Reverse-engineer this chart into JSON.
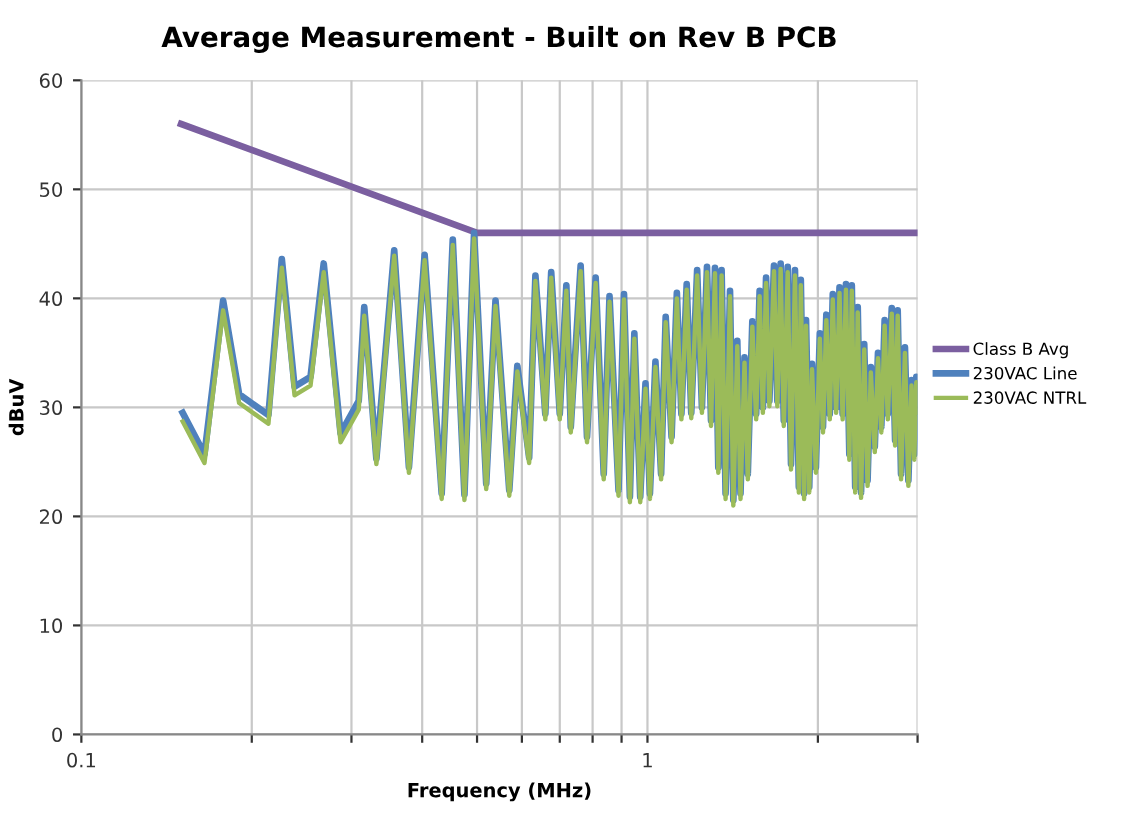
{
  "chart_data": {
    "type": "line",
    "title": "Average Measurement - Built on Rev B PCB",
    "xlabel": "Frequency (MHz)",
    "ylabel": "dBuV",
    "log": "x",
    "xlim": [
      0.1,
      3
    ],
    "xticks": [
      0.1,
      {
        "value": 0.2,
        "label": null
      },
      {
        "value": 0.3,
        "label": null
      },
      {
        "value": 0.4,
        "label": null
      },
      {
        "value": 0.5,
        "label": null
      },
      {
        "value": 0.6,
        "label": null
      },
      {
        "value": 0.7,
        "label": null
      },
      {
        "value": 0.8,
        "label": null
      },
      {
        "value": 0.9,
        "label": null
      },
      1,
      {
        "value": 2,
        "label": null
      },
      {
        "value": 3,
        "label": null
      }
    ],
    "ylim": [
      0,
      60
    ],
    "yticks": [
      0,
      10,
      20,
      30,
      40,
      50,
      60
    ],
    "grid": true,
    "legend": "right",
    "marker": "none",
    "line_style": "solid",
    "x": [
      0.151,
      0.165,
      0.178,
      0.19,
      0.214,
      0.226,
      0.238,
      0.254,
      0.268,
      0.287,
      0.309,
      0.316,
      0.332,
      0.357,
      0.379,
      0.404,
      0.433,
      0.453,
      0.475,
      0.494,
      0.519,
      0.539,
      0.57,
      0.589,
      0.618,
      0.634,
      0.66,
      0.676,
      0.7,
      0.719,
      0.732,
      0.762,
      0.782,
      0.81,
      0.837,
      0.857,
      0.889,
      0.909,
      0.931,
      0.948,
      0.971,
      0.992,
      1.01,
      1.033,
      1.057,
      1.077,
      1.103,
      1.127,
      1.148,
      1.173,
      1.195,
      1.224,
      1.248,
      1.274,
      1.295,
      1.316,
      1.334,
      1.352,
      1.374,
      1.399,
      1.418,
      1.441,
      1.46,
      1.484,
      1.504,
      1.532,
      1.556,
      1.578,
      1.599,
      1.62,
      1.642,
      1.673,
      1.696,
      1.719,
      1.741,
      1.769,
      1.793,
      1.822,
      1.851,
      1.866,
      1.891,
      1.906,
      1.931,
      1.953,
      1.984,
      2.016,
      2.042,
      2.07,
      2.099,
      2.125,
      2.154,
      2.184,
      2.212,
      2.242,
      2.273,
      2.296,
      2.328,
      2.352,
      2.384,
      2.415,
      2.448,
      2.481,
      2.521,
      2.554,
      2.589,
      2.624,
      2.658,
      2.701,
      2.738,
      2.767,
      2.805,
      2.85,
      2.89,
      2.927,
      2.96,
      2.985,
      3.0
    ],
    "series": [
      {
        "name": "Class B Avg",
        "color": "#7b5fa0",
        "x": [
          0.15,
          0.5,
          3
        ],
        "values": [
          56,
          46,
          46
        ]
      },
      {
        "name": "230VAC Line",
        "color": "#4f81bd",
        "values": [
          29.5,
          25.7,
          39.8,
          31.2,
          29.3,
          43.6,
          31.9,
          32.8,
          43.2,
          27.6,
          30.6,
          39.2,
          25.3,
          44.4,
          24.5,
          44.0,
          22.1,
          45.4,
          22.0,
          46.0,
          23.0,
          39.8,
          22.4,
          33.8,
          25.4,
          42.1,
          29.4,
          42.4,
          29.4,
          41.2,
          28.2,
          43.0,
          27.3,
          41.9,
          23.9,
          40.2,
          22.4,
          40.4,
          21.8,
          36.8,
          21.8,
          32.2,
          22.1,
          34.2,
          23.9,
          38.3,
          27.3,
          40.5,
          29.4,
          41.3,
          29.5,
          42.6,
          30.0,
          42.9,
          28.8,
          42.8,
          24.5,
          42.6,
          22.1,
          40.7,
          21.5,
          36.1,
          22.1,
          34.6,
          23.9,
          37.9,
          29.4,
          40.7,
          30.0,
          41.9,
          30.6,
          43.0,
          30.6,
          43.2,
          28.8,
          42.9,
          24.8,
          42.6,
          22.7,
          41.7,
          22.1,
          38.0,
          22.7,
          34.0,
          24.5,
          36.8,
          28.2,
          38.5,
          29.4,
          40.4,
          30.0,
          41.0,
          29.4,
          41.3,
          25.7,
          41.2,
          22.7,
          39.2,
          22.2,
          35.8,
          23.3,
          33.7,
          26.4,
          35.0,
          28.2,
          38.0,
          29.4,
          39.1,
          27.0,
          38.9,
          23.9,
          35.5,
          23.3,
          32.5,
          25.7,
          32.8,
          30.0
        ]
      },
      {
        "name": "230VAC NTRL",
        "color": "#9bbb59",
        "values": [
          28.7,
          24.9,
          38.9,
          30.4,
          28.5,
          42.8,
          31.1,
          32.0,
          42.4,
          26.8,
          29.8,
          38.4,
          24.8,
          43.9,
          24.0,
          43.5,
          21.6,
          44.9,
          21.5,
          45.5,
          22.5,
          39.3,
          21.9,
          33.3,
          24.9,
          41.6,
          28.9,
          41.9,
          28.9,
          40.7,
          27.7,
          42.5,
          26.8,
          41.4,
          23.4,
          39.7,
          21.9,
          39.9,
          21.3,
          36.3,
          21.3,
          31.7,
          21.6,
          33.7,
          23.4,
          37.8,
          26.8,
          40.0,
          28.9,
          40.8,
          29.0,
          42.1,
          29.5,
          42.4,
          28.3,
          42.3,
          24.0,
          42.1,
          21.6,
          40.2,
          21.0,
          35.6,
          21.6,
          34.1,
          23.4,
          37.4,
          28.9,
          40.2,
          29.5,
          41.4,
          30.1,
          42.5,
          30.1,
          42.7,
          28.3,
          42.4,
          24.3,
          42.1,
          22.2,
          41.2,
          21.6,
          37.5,
          22.2,
          33.5,
          24.0,
          36.3,
          27.7,
          38.0,
          28.9,
          39.9,
          29.5,
          40.5,
          28.9,
          40.8,
          25.2,
          40.7,
          22.2,
          38.7,
          21.7,
          35.3,
          22.8,
          33.2,
          25.9,
          34.5,
          27.7,
          37.5,
          28.9,
          38.6,
          26.5,
          38.4,
          23.4,
          35.0,
          22.8,
          32.0,
          25.2,
          32.3,
          29.5
        ]
      }
    ]
  }
}
